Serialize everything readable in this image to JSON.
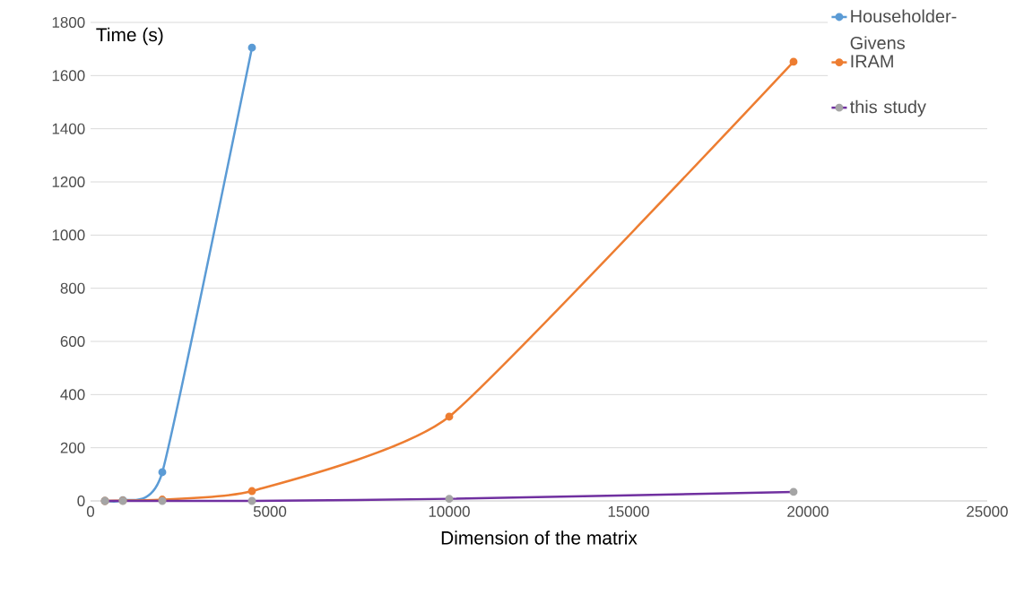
{
  "chart_data": {
    "type": "line",
    "xlabel": "Dimension of the matrix",
    "ylabel": "Time (s)",
    "xlim": [
      0,
      25000
    ],
    "xticks": [
      0,
      5000,
      10000,
      15000,
      20000,
      25000
    ],
    "ylim": [
      0,
      1800
    ],
    "yticks": [
      0,
      200,
      400,
      600,
      800,
      1000,
      1200,
      1400,
      1600,
      1800
    ],
    "grid": "y",
    "legend": "right",
    "marker": "circle",
    "line_style": "solid",
    "series": [
      {
        "name": "Householder-Givens",
        "color": "#5b9bd5",
        "x": [
          400,
          900,
          2000,
          4500
        ],
        "values": [
          0,
          3,
          108,
          1705
        ]
      },
      {
        "name": "IRAM",
        "color": "#ed7d31",
        "x": [
          400,
          900,
          2000,
          4500,
          10000,
          19600
        ],
        "values": [
          0,
          1,
          5,
          37,
          317,
          1652
        ]
      },
      {
        "name": "this study",
        "color": "#7030a0",
        "colors": [
          "#a5a5a5",
          "#a5a5a5",
          "#a5a5a5",
          "#a5a5a5",
          "#a5a5a5",
          "#a5a5a5"
        ],
        "x": [
          400,
          900,
          2000,
          4500,
          10000,
          19600
        ],
        "values": [
          0,
          0,
          0,
          0,
          8,
          34
        ]
      }
    ]
  }
}
